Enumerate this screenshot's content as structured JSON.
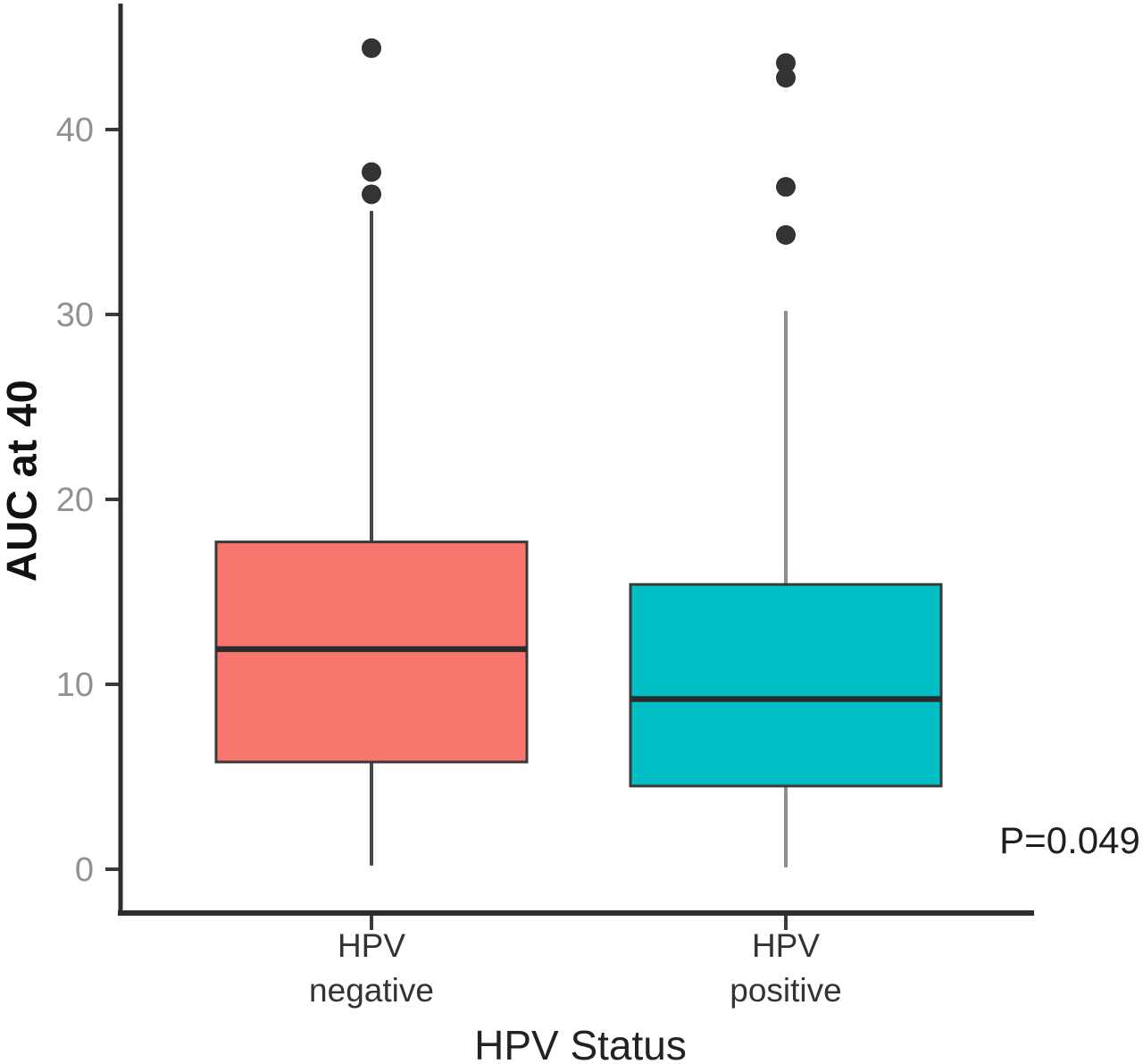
{
  "figure": {
    "background": "#ffffff"
  },
  "chart_data": {
    "type": "boxplot",
    "title": "",
    "xlabel": "HPV Status",
    "ylabel": "AUC at 40",
    "annotation": "P=0.049",
    "ylim": [
      0,
      47
    ],
    "yticks": [
      0,
      10,
      20,
      30,
      40
    ],
    "grid": false,
    "legend": "none",
    "categories": [
      "HPV negative",
      "HPV positive"
    ],
    "groups": [
      {
        "label_lines": [
          "HPV",
          "negative"
        ],
        "fill_color": "#F8766D",
        "whisker_color": "#484848",
        "q1": 5.8,
        "median": 11.9,
        "q3": 17.7,
        "whisker_low": 0.2,
        "whisker_high": 35.6,
        "outliers": [
          36.5,
          37.7,
          44.4
        ]
      },
      {
        "label_lines": [
          "HPV",
          "positive"
        ],
        "fill_color": "#00BFC4",
        "whisker_color": "#8e8e8e",
        "q1": 4.5,
        "median": 9.2,
        "q3": 15.4,
        "whisker_low": 0.1,
        "whisker_high": 30.2,
        "outliers": [
          34.3,
          36.9,
          42.8,
          43.6
        ]
      }
    ],
    "colors": {
      "outlier": "#333333",
      "box_border": "#3a3a3a",
      "median": "#2b2b2b",
      "axis": "#2e2e2e",
      "tick": "#3a3a3a",
      "tick_label": "#919191"
    }
  }
}
